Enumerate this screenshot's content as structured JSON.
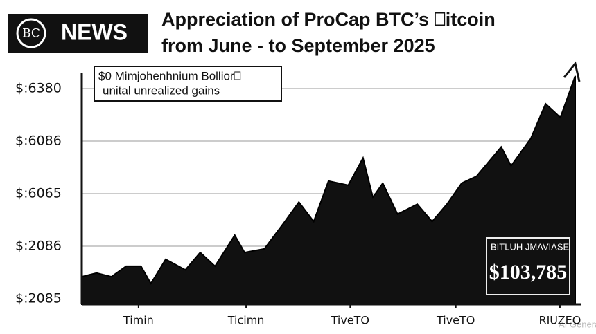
{
  "logo": {
    "mark": "BC",
    "text": "NEWS"
  },
  "watermark": "AI Generated",
  "chart_data": {
    "type": "area",
    "title": [
      "Appreciation of ProCap BTC’s ⎕itcoin",
      "from June - to September 2025"
    ],
    "annotations": [
      {
        "lines": [
          "$0 Mimjohenhnium Bollior⎕",
          "unital unrealized gains"
        ]
      },
      {
        "lines": [
          "BITLUH JMAVIASE",
          "$103,785"
        ]
      }
    ],
    "color": "#111111",
    "x": [
      0,
      3,
      6,
      9,
      12,
      14,
      17,
      21,
      24,
      27,
      31,
      33,
      37,
      41,
      44,
      47,
      50,
      54,
      57,
      59,
      61,
      64,
      68,
      71,
      74,
      77,
      80,
      85,
      87,
      91,
      94,
      97,
      100
    ],
    "values": [
      0.42,
      0.49,
      0.42,
      0.62,
      0.62,
      0.29,
      0.75,
      0.55,
      0.88,
      0.62,
      1.21,
      0.88,
      0.95,
      1.45,
      1.84,
      1.47,
      2.24,
      2.16,
      2.68,
      1.93,
      2.2,
      1.61,
      1.8,
      1.47,
      1.8,
      2.2,
      2.33,
      2.89,
      2.53,
      3.05,
      3.71,
      3.45,
      4.24
    ],
    "xlim": [
      0,
      100
    ],
    "xticks": [
      {
        "value": 11.5,
        "label": "Timin"
      },
      {
        "value": 33.3,
        "label": "Ticimn"
      },
      {
        "value": 54.4,
        "label": "TiveTO"
      },
      {
        "value": 75.8,
        "label": "TiveTO"
      },
      {
        "value": 96.9,
        "label": "RIUZEO"
      }
    ],
    "ylim": [
      0,
      4.4
    ],
    "yticks": [
      {
        "value": 0,
        "label": "$:2085"
      },
      {
        "value": 1,
        "label": "$:2086"
      },
      {
        "value": 2,
        "label": "$:6065"
      },
      {
        "value": 3,
        "label": "$:6086"
      },
      {
        "value": 4,
        "label": "$:6380"
      }
    ],
    "grid": true
  }
}
